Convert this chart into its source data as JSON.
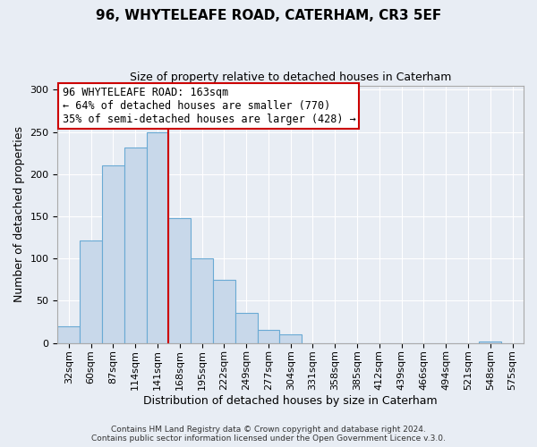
{
  "title": "96, WHYTELEAFE ROAD, CATERHAM, CR3 5EF",
  "subtitle": "Size of property relative to detached houses in Caterham",
  "xlabel": "Distribution of detached houses by size in Caterham",
  "ylabel": "Number of detached properties",
  "bar_color": "#c8d8ea",
  "bar_edge_color": "#6aaad4",
  "background_color": "#e8edf4",
  "plot_bg_color": "#e8edf4",
  "grid_color": "#ffffff",
  "bin_labels": [
    "32sqm",
    "60sqm",
    "87sqm",
    "114sqm",
    "141sqm",
    "168sqm",
    "195sqm",
    "222sqm",
    "249sqm",
    "277sqm",
    "304sqm",
    "331sqm",
    "358sqm",
    "385sqm",
    "412sqm",
    "439sqm",
    "466sqm",
    "494sqm",
    "521sqm",
    "548sqm",
    "575sqm"
  ],
  "bar_heights": [
    20,
    121,
    210,
    232,
    250,
    148,
    100,
    75,
    36,
    16,
    10,
    0,
    0,
    0,
    0,
    0,
    0,
    0,
    0,
    2,
    0
  ],
  "ylim": [
    0,
    305
  ],
  "yticks": [
    0,
    50,
    100,
    150,
    200,
    250,
    300
  ],
  "vline_pos": 5.0,
  "annotation_title": "96 WHYTELEAFE ROAD: 163sqm",
  "annotation_line1": "← 64% of detached houses are smaller (770)",
  "annotation_line2": "35% of semi-detached houses are larger (428) →",
  "annotation_box_facecolor": "#ffffff",
  "annotation_box_edgecolor": "#cc0000",
  "vline_color": "#cc0000",
  "footer_line1": "Contains HM Land Registry data © Crown copyright and database right 2024.",
  "footer_line2": "Contains public sector information licensed under the Open Government Licence v.3.0.",
  "title_fontsize": 11,
  "subtitle_fontsize": 9,
  "ylabel_fontsize": 9,
  "xlabel_fontsize": 9,
  "tick_fontsize": 8,
  "annotation_fontsize": 8.5,
  "footer_fontsize": 6.5
}
